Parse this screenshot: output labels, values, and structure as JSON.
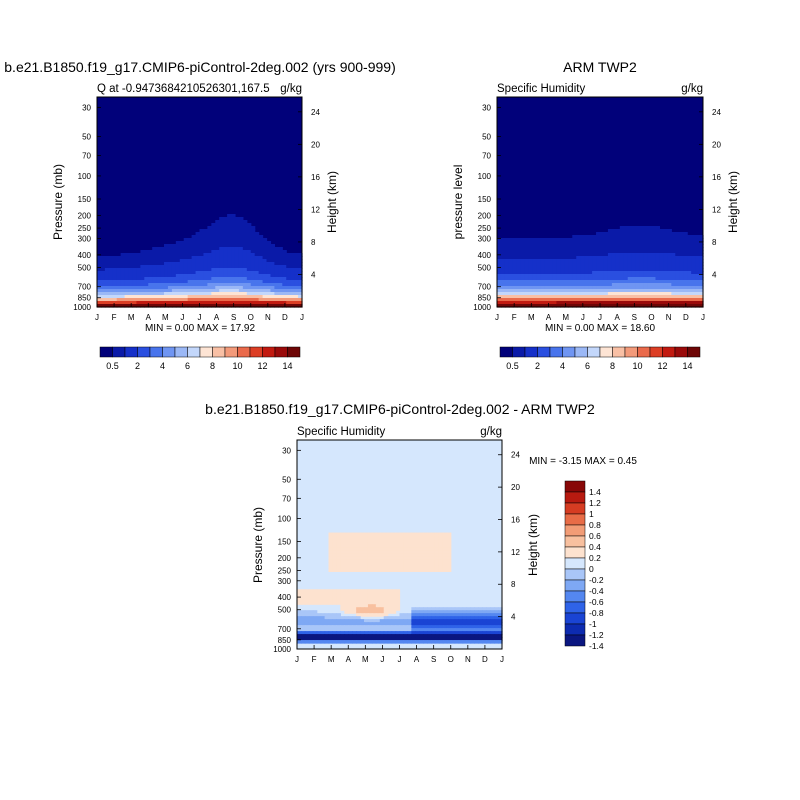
{
  "colors": {
    "bg": "#ffffff",
    "palette_abs": [
      "#01017a",
      "#0a1aa8",
      "#1530c9",
      "#2a4fe0",
      "#4874ec",
      "#6f95f2",
      "#9bb8f6",
      "#c3d7fb",
      "#fde4d4",
      "#f9c0a5",
      "#f39a7a",
      "#ea6a4b",
      "#dc3e24",
      "#c21a10",
      "#9a0a0a",
      "#6e0606"
    ],
    "palette_diff": [
      "#0a1680",
      "#0d2bb0",
      "#1a44d4",
      "#2f63e8",
      "#5487f0",
      "#7ea8f4",
      "#a9c6f8",
      "#d5e7fd",
      "#fde2cf",
      "#f8c09f",
      "#f29c76",
      "#e86c47",
      "#d63c22",
      "#b81a10",
      "#880808"
    ]
  },
  "chart_data": [
    {
      "id": "model",
      "type": "heatmap",
      "title": "b.e21.B1850.f19_g17.CMIP6-piControl-2deg.002 (yrs 900-999)",
      "subtitle_left": "Q at -0.9473684210526301,167.5",
      "subtitle_right": "g/kg",
      "ylabel": "Pressure (mb)",
      "ylabel_right": "Height (km)",
      "x_ticks": [
        "J",
        "F",
        "M",
        "A",
        "M",
        "J",
        "J",
        "A",
        "S",
        "O",
        "N",
        "D",
        "J"
      ],
      "y_ticks": [
        "30",
        "50",
        "70",
        "100",
        "150",
        "200",
        "250",
        "300",
        "400",
        "500",
        "700",
        "850",
        "1000"
      ],
      "y_values": [
        30,
        50,
        70,
        100,
        150,
        200,
        250,
        300,
        400,
        500,
        700,
        850,
        1000
      ],
      "ylim": [
        25,
        1000
      ],
      "y_log": true,
      "height_ticks": [
        "24",
        "20",
        "16",
        "12",
        "8",
        "4"
      ],
      "height_values": [
        24,
        20,
        16,
        12,
        8,
        4
      ],
      "min_max": "MIN =   0.00 MAX =  17.92",
      "min": 0.0,
      "max": 17.92,
      "field": "humidity_model"
    },
    {
      "id": "obs",
      "type": "heatmap",
      "title": "ARM TWP2",
      "subtitle_left": "Specific Humidity",
      "subtitle_right": "g/kg",
      "ylabel": "pressure level",
      "ylabel_right": "Height (km)",
      "x_ticks": [
        "J",
        "F",
        "M",
        "A",
        "M",
        "J",
        "J",
        "A",
        "S",
        "O",
        "N",
        "D",
        "J"
      ],
      "y_ticks": [
        "30",
        "50",
        "70",
        "100",
        "150",
        "200",
        "250",
        "300",
        "400",
        "500",
        "700",
        "850",
        "1000"
      ],
      "y_values": [
        30,
        50,
        70,
        100,
        150,
        200,
        250,
        300,
        400,
        500,
        700,
        850,
        1000
      ],
      "ylim": [
        25,
        1000
      ],
      "y_log": true,
      "height_ticks": [
        "24",
        "20",
        "16",
        "12",
        "8",
        "4"
      ],
      "height_values": [
        24,
        20,
        16,
        12,
        8,
        4
      ],
      "min_max": "MIN =   0.00 MAX =  18.60",
      "min": 0.0,
      "max": 18.6,
      "field": "humidity_obs"
    },
    {
      "id": "diff",
      "type": "heatmap",
      "title": "b.e21.B1850.f19_g17.CMIP6-piControl-2deg.002 - ARM TWP2",
      "subtitle_left": "Specific Humidity",
      "subtitle_right": "g/kg",
      "ylabel": "Pressure (mb)",
      "ylabel_right": "Height (km)",
      "x_ticks": [
        "J",
        "F",
        "M",
        "A",
        "M",
        "J",
        "J",
        "A",
        "S",
        "O",
        "N",
        "D",
        "J"
      ],
      "y_ticks": [
        "30",
        "50",
        "70",
        "100",
        "150",
        "200",
        "250",
        "300",
        "400",
        "500",
        "700",
        "850",
        "1000"
      ],
      "y_values": [
        30,
        50,
        70,
        100,
        150,
        200,
        250,
        300,
        400,
        500,
        700,
        850,
        1000
      ],
      "ylim": [
        25,
        1000
      ],
      "y_log": true,
      "height_ticks": [
        "24",
        "20",
        "16",
        "12",
        "8",
        "4"
      ],
      "height_values": [
        24,
        20,
        16,
        12,
        8,
        4
      ],
      "min_max": "MIN =  -3.15 MAX =   0.45",
      "min": -3.15,
      "max": 0.45,
      "field": "difference"
    }
  ],
  "colorbars": {
    "abs": {
      "orientation": "horizontal",
      "labels": [
        "0.5",
        "2",
        "4",
        "6",
        "8",
        "10",
        "12",
        "14"
      ],
      "levels": [
        0.5,
        1,
        2,
        3,
        4,
        5,
        6,
        7,
        8,
        9,
        10,
        11,
        12,
        13,
        14
      ]
    },
    "diff": {
      "orientation": "vertical",
      "labels": [
        "1.4",
        "1.2",
        "1",
        "0.8",
        "0.6",
        "0.4",
        "0.2",
        "0",
        "-0.2",
        "-0.4",
        "-0.6",
        "-0.8",
        "-1",
        "-1.2",
        "-1.4"
      ],
      "levels": [
        1.4,
        1.2,
        1.0,
        0.8,
        0.6,
        0.4,
        0.2,
        0,
        -0.2,
        -0.4,
        -0.6,
        -0.8,
        -1.0,
        -1.2,
        -1.4
      ]
    }
  }
}
